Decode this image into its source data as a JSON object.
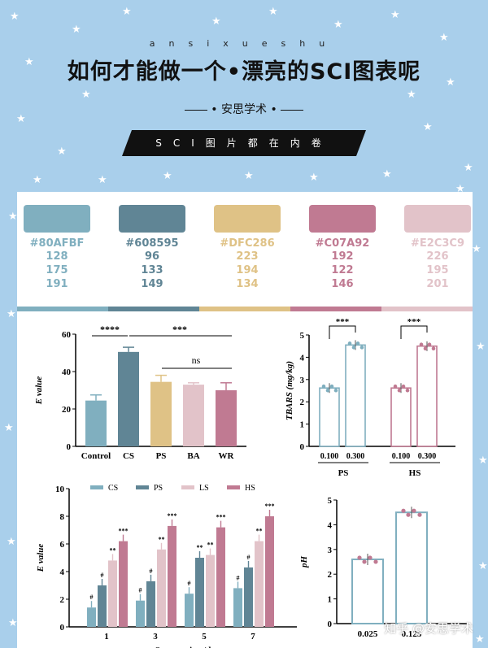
{
  "header": {
    "brand": "ansixueshu",
    "title": "如何才能做一个•漂亮的SCI图表呢",
    "subtitle": "安思学术",
    "banner": "SCI图片都在内卷"
  },
  "swatches": [
    {
      "hex": "#80AFBF",
      "r": "128",
      "g": "175",
      "b": "191",
      "color": "#80AFBF"
    },
    {
      "hex": "#608595",
      "r": "96",
      "g": "133",
      "b": "149",
      "color": "#608595"
    },
    {
      "hex": "#DFC286",
      "r": "223",
      "g": "194",
      "b": "134",
      "color": "#DFC286"
    },
    {
      "hex": "#C07A92",
      "r": "192",
      "g": "122",
      "b": "146",
      "color": "#C07A92"
    },
    {
      "hex": "#E2C3C9",
      "r": "226",
      "g": "195",
      "b": "201",
      "color": "#E2C3C9"
    }
  ],
  "chart_data": [
    {
      "type": "bar",
      "ylabel": "E value",
      "categories": [
        "Control",
        "CS",
        "PS",
        "BA",
        "WR"
      ],
      "values": [
        24.5,
        50.5,
        34.5,
        33,
        30
      ],
      "errors": [
        3,
        2.5,
        3.5,
        1,
        4
      ],
      "colors": [
        "#80AFBF",
        "#608595",
        "#DFC286",
        "#E2C3C9",
        "#C07A92"
      ],
      "ylim": [
        0,
        60
      ],
      "yticks": [
        "0",
        "20",
        "40",
        "60"
      ],
      "annotations": [
        "****",
        "***",
        "ns"
      ]
    },
    {
      "type": "bar",
      "ylabel": "TBARS (mg/kg)",
      "groups": [
        "PS",
        "HS"
      ],
      "categories": [
        "0.100",
        "0.300",
        "0.100",
        "0.300"
      ],
      "values": [
        2.62,
        4.55,
        2.62,
        4.5
      ],
      "ylim": [
        0,
        5
      ],
      "yticks": [
        "0",
        "1",
        "2",
        "3",
        "4",
        "5"
      ],
      "annotations": [
        "***",
        "***"
      ]
    },
    {
      "type": "bar",
      "ylabel": "E value",
      "xlabel": "Storage time/d",
      "categories": [
        "1",
        "3",
        "5",
        "7"
      ],
      "series": [
        {
          "name": "CS",
          "values": [
            1.4,
            1.9,
            2.4,
            2.8
          ],
          "color": "#80AFBF"
        },
        {
          "name": "PS",
          "values": [
            3.0,
            3.3,
            5.0,
            4.3
          ],
          "color": "#608595"
        },
        {
          "name": "LS",
          "values": [
            4.8,
            5.6,
            5.2,
            6.2
          ],
          "color": "#E2C3C9"
        },
        {
          "name": "HS",
          "values": [
            6.2,
            7.3,
            7.2,
            8.0
          ],
          "color": "#C07A92"
        }
      ],
      "marks": [
        [
          "#",
          "#",
          "**",
          "***"
        ],
        [
          "#",
          "#",
          "**",
          "***"
        ],
        [
          "#",
          "**",
          "**",
          "***"
        ],
        [
          "#",
          "#",
          "**",
          "***"
        ]
      ],
      "ylim": [
        0,
        10
      ],
      "yticks": [
        "0",
        "2",
        "4",
        "6",
        "8",
        "10"
      ]
    },
    {
      "type": "bar",
      "ylabel": "pH",
      "categories": [
        "0.025",
        "0.125"
      ],
      "values": [
        2.6,
        4.5
      ],
      "ylim": [
        0,
        5
      ],
      "yticks": [
        "0",
        "1",
        "2",
        "3",
        "4",
        "5"
      ]
    }
  ],
  "watermark": "知乎 @安思学术"
}
